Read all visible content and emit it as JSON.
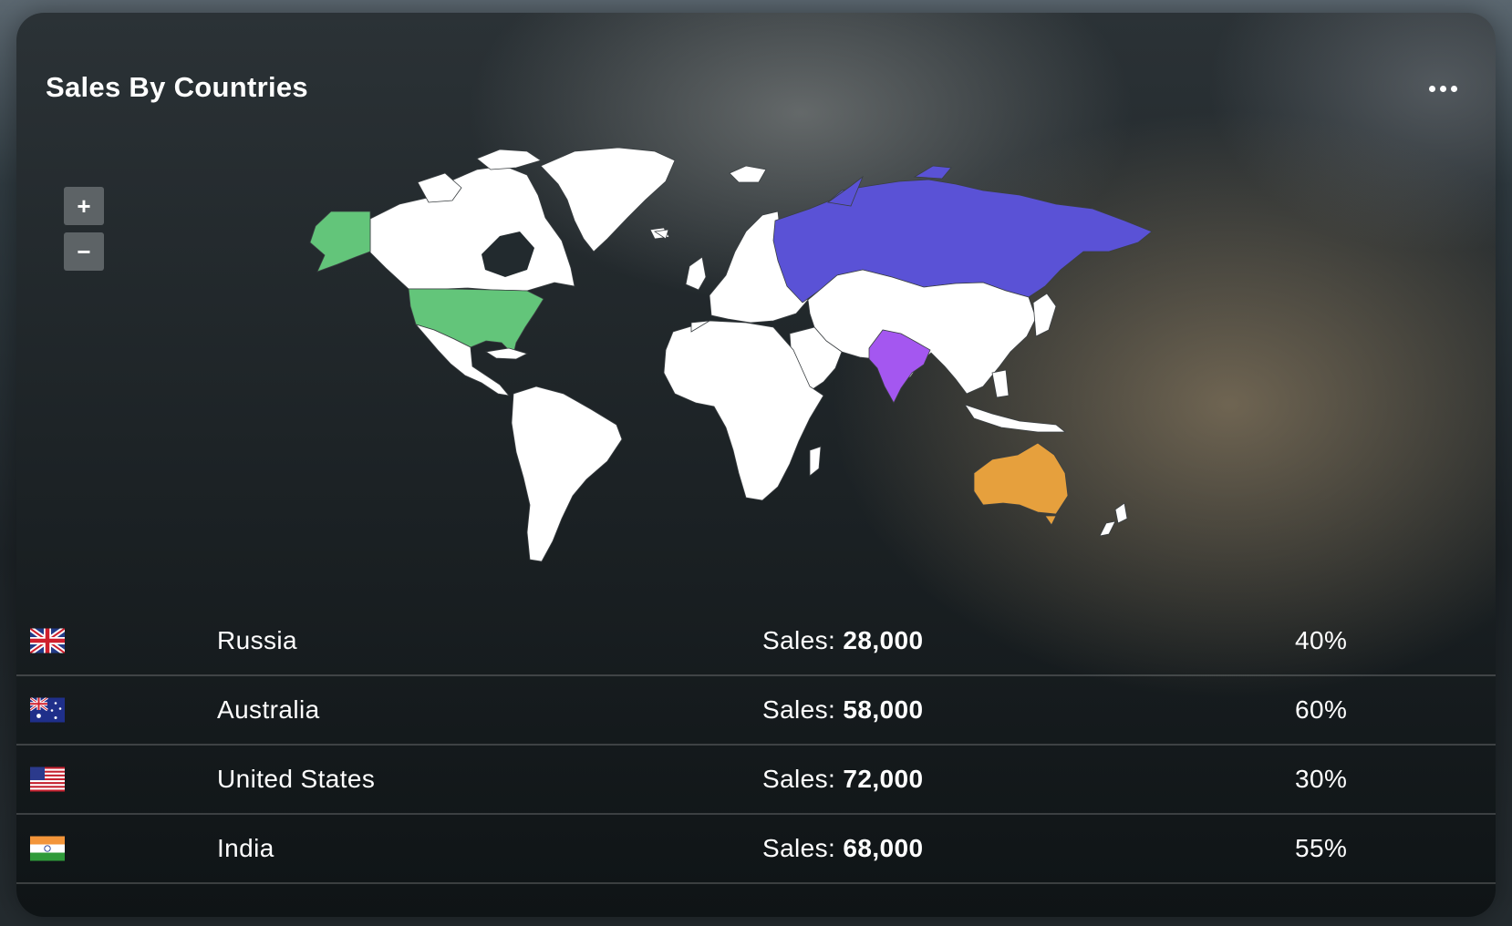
{
  "widget": {
    "title": "Sales By Countries",
    "more_icon": "more-horizontal-icon"
  },
  "map": {
    "zoom_in_label": "+",
    "zoom_out_label": "−",
    "land_color": "#ffffff",
    "highlights": [
      {
        "country": "United States",
        "color": "#63c57a"
      },
      {
        "country": "Russia",
        "color": "#5a52d6"
      },
      {
        "country": "India",
        "color": "#a457f0"
      },
      {
        "country": "Australia",
        "color": "#e6a03d"
      }
    ]
  },
  "sales_table": {
    "sales_prefix": "Sales:",
    "rows": [
      {
        "flag": "uk-flag-icon",
        "country": "Russia",
        "sales": "28,000",
        "percent": "40%"
      },
      {
        "flag": "australia-flag-icon",
        "country": "Australia",
        "sales": "58,000",
        "percent": "60%"
      },
      {
        "flag": "usa-flag-icon",
        "country": "United States",
        "sales": "72,000",
        "percent": "30%"
      },
      {
        "flag": "india-flag-icon",
        "country": "India",
        "sales": "68,000",
        "percent": "55%"
      }
    ]
  }
}
